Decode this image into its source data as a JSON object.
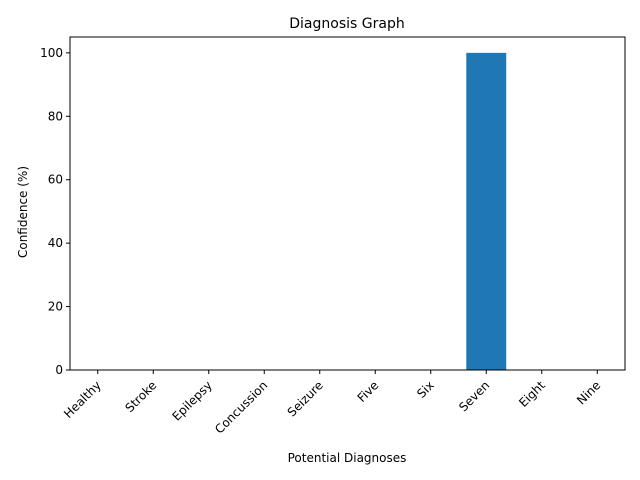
{
  "chart_data": {
    "type": "bar",
    "title": "Diagnosis Graph",
    "xlabel": "Potential Diagnoses",
    "ylabel": "Confidence (%)",
    "categories": [
      "Healthy",
      "Stroke",
      "Epilepsy",
      "Concussion",
      "Seizure",
      "Five",
      "Six",
      "Seven",
      "Eight",
      "Nine"
    ],
    "values": [
      0,
      0,
      0,
      0,
      0,
      0,
      0,
      100,
      0,
      0
    ],
    "ylim": [
      0,
      105
    ],
    "yticks": [
      0,
      20,
      40,
      60,
      80,
      100
    ],
    "grid": false,
    "bar_color": "#1f77b4"
  }
}
